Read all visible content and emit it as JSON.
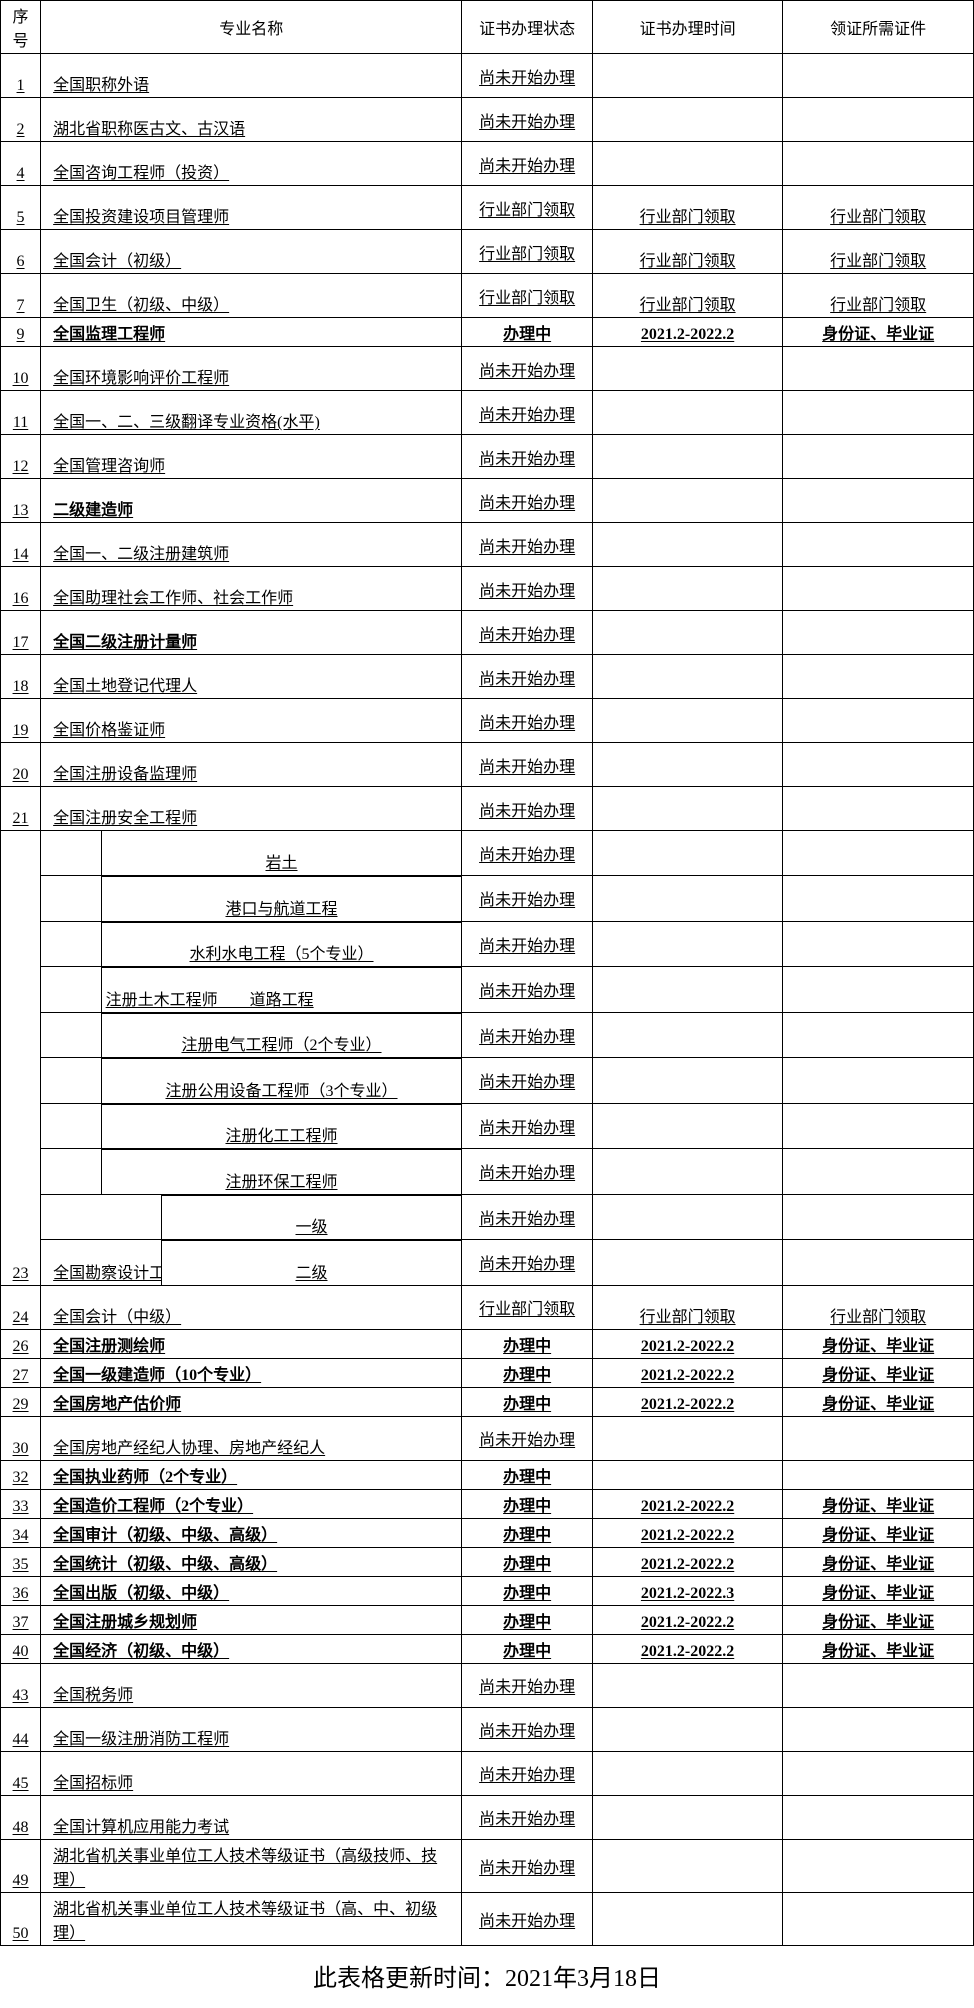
{
  "headers": {
    "seq": "序号",
    "name": "专业名称",
    "status": "证书办理状态",
    "time": "证书办理时间",
    "docs": "领证所需证件"
  },
  "status_labels": {
    "not_started": "尚未开始办理",
    "dept": "行业部门领取",
    "processing": "办理中"
  },
  "time_labels": {
    "dept": "行业部门领取",
    "range1": "2021.2-2022.2",
    "range2": "2021.2-2022.3"
  },
  "doc_labels": {
    "dept": "行业部门领取",
    "id_diploma": "身份证、毕业证"
  },
  "rows": [
    {
      "seq": "1",
      "name": "全国职称外语",
      "status": "not_started",
      "time": "",
      "docs": "",
      "tall": true
    },
    {
      "seq": "2",
      "name": "湖北省职称医古文、古汉语",
      "status": "not_started",
      "time": "",
      "docs": "",
      "tall": true
    },
    {
      "seq": "4",
      "name": "全国咨询工程师（投资）",
      "status": "not_started",
      "time": "",
      "docs": "",
      "tall": true
    },
    {
      "seq": "5",
      "name": "全国投资建设项目管理师",
      "status": "dept",
      "time": "dept",
      "docs": "dept",
      "tall": true
    },
    {
      "seq": "6",
      "name": "全国会计（初级）",
      "status": "dept",
      "time": "dept",
      "docs": "dept",
      "tall": true
    },
    {
      "seq": "7",
      "name": "全国卫生（初级、中级）",
      "status": "dept",
      "time": "dept",
      "docs": "dept",
      "tall": true
    },
    {
      "seq": "9",
      "name": "全国监理工程师",
      "status": "processing",
      "time": "range1",
      "docs": "id_diploma",
      "tall": false,
      "bold": true
    },
    {
      "seq": "10",
      "name": "全国环境影响评价工程师",
      "status": "not_started",
      "time": "",
      "docs": "",
      "tall": true
    },
    {
      "seq": "11",
      "name": "全国一、二、三级翻译专业资格(水平)",
      "status": "not_started",
      "time": "",
      "docs": "",
      "tall": true
    },
    {
      "seq": "12",
      "name": "全国管理咨询师",
      "status": "not_started",
      "time": "",
      "docs": "",
      "tall": true
    },
    {
      "seq": "13",
      "name": "二级建造师",
      "status": "not_started",
      "time": "",
      "docs": "",
      "tall": true,
      "bold": true
    },
    {
      "seq": "14",
      "name": "全国一、二级注册建筑师",
      "status": "not_started",
      "time": "",
      "docs": "",
      "tall": true
    },
    {
      "seq": "16",
      "name": "全国助理社会工作师、社会工作师",
      "status": "not_started",
      "time": "",
      "docs": "",
      "tall": true
    },
    {
      "seq": "17",
      "name": "全国二级注册计量师",
      "status": "not_started",
      "time": "",
      "docs": "",
      "tall": true,
      "bold": true
    },
    {
      "seq": "18",
      "name": "全国土地登记代理人",
      "status": "not_started",
      "time": "",
      "docs": "",
      "tall": true
    },
    {
      "seq": "19",
      "name": "全国价格鉴证师",
      "status": "not_started",
      "time": "",
      "docs": "",
      "tall": true
    },
    {
      "seq": "20",
      "name": "全国注册设备监理师",
      "status": "not_started",
      "time": "",
      "docs": "",
      "tall": true
    },
    {
      "seq": "21",
      "name": "全国注册安全工程师",
      "status": "not_started",
      "time": "",
      "docs": "",
      "tall": true
    }
  ],
  "row23": {
    "seq": "23",
    "bottom_label": "全国勘察设计工程师",
    "sub": [
      {
        "name": "岩土",
        "status": "not_started"
      },
      {
        "name": "港口与航道工程",
        "status": "not_started"
      },
      {
        "name": "水利水电工程（5个专业）",
        "status": "not_started"
      },
      {
        "name": "注册土木工程师　　道路工程",
        "status": "not_started",
        "align_left": true
      },
      {
        "name": "注册电气工程师（2个专业）",
        "status": "not_started"
      },
      {
        "name": "注册公用设备工程师（3个专业）",
        "status": "not_started"
      },
      {
        "name": "注册化工工程师",
        "status": "not_started"
      },
      {
        "name": "注册环保工程师",
        "status": "not_started"
      },
      {
        "name": "一级",
        "status": "not_started",
        "narrow": true
      },
      {
        "name": "二级",
        "status": "not_started",
        "narrow": true
      }
    ]
  },
  "rows2": [
    {
      "seq": "24",
      "name": "全国会计（中级）",
      "status": "dept",
      "time": "dept",
      "docs": "dept",
      "tall": true
    },
    {
      "seq": "26",
      "name": "全国注册测绘师",
      "status": "processing",
      "time": "range1",
      "docs": "id_diploma",
      "tall": false,
      "bold": true
    },
    {
      "seq": "27",
      "name": "全国一级建造师（10个专业）",
      "status": "processing",
      "time": "range1",
      "docs": "id_diploma",
      "tall": false,
      "bold": true
    },
    {
      "seq": "29",
      "name": "全国房地产估价师",
      "status": "processing",
      "time": "range1",
      "docs": "id_diploma",
      "tall": false,
      "bold": true
    },
    {
      "seq": "30",
      "name": "全国房地产经纪人协理、房地产经纪人",
      "status": "not_started",
      "time": "",
      "docs": "",
      "tall": true
    },
    {
      "seq": "32",
      "name": "全国执业药师（2个专业）",
      "status": "processing",
      "time": "",
      "docs": "",
      "tall": false,
      "bold": true
    },
    {
      "seq": "33",
      "name": "全国造价工程师（2个专业）",
      "status": "processing",
      "time": "range1",
      "docs": "id_diploma",
      "tall": false,
      "bold": true
    },
    {
      "seq": "34",
      "name": "全国审计（初级、中级、高级）",
      "status": "processing",
      "time": "range1",
      "docs": "id_diploma",
      "tall": false,
      "bold": true
    },
    {
      "seq": "35",
      "name": "全国统计（初级、中级、高级）",
      "status": "processing",
      "time": "range1",
      "docs": "id_diploma",
      "tall": false,
      "bold": true
    },
    {
      "seq": "36",
      "name": "全国出版（初级、中级）",
      "status": "processing",
      "time": "range2",
      "docs": "id_diploma",
      "tall": false,
      "bold": true
    },
    {
      "seq": "37",
      "name": "全国注册城乡规划师",
      "status": "processing",
      "time": "range1",
      "docs": "id_diploma",
      "tall": false,
      "bold": true
    },
    {
      "seq": "40",
      "name": "全国经济（初级、中级）",
      "status": "processing",
      "time": "range1",
      "docs": "id_diploma",
      "tall": false,
      "bold": true
    },
    {
      "seq": "43",
      "name": "全国税务师",
      "status": "not_started",
      "time": "",
      "docs": "",
      "tall": true
    },
    {
      "seq": "44",
      "name": "全国一级注册消防工程师",
      "status": "not_started",
      "time": "",
      "docs": "",
      "tall": true
    },
    {
      "seq": "45",
      "name": "全国招标师",
      "status": "not_started",
      "time": "",
      "docs": "",
      "tall": true
    },
    {
      "seq": "48",
      "name": "全国计算机应用能力考试",
      "status": "not_started",
      "time": "",
      "docs": "",
      "tall": true
    },
    {
      "seq": "49",
      "name": "湖北省机关事业单位工人技术等级证书（高级技师、技理）",
      "status": "not_started",
      "time": "",
      "docs": "",
      "tall": true
    },
    {
      "seq": "50",
      "name": "湖北省机关事业单位工人技术等级证书（高、中、初级理）",
      "status": "not_started",
      "time": "",
      "docs": "",
      "tall": true
    }
  ],
  "footer": "此表格更新时间：2021年3月18日"
}
